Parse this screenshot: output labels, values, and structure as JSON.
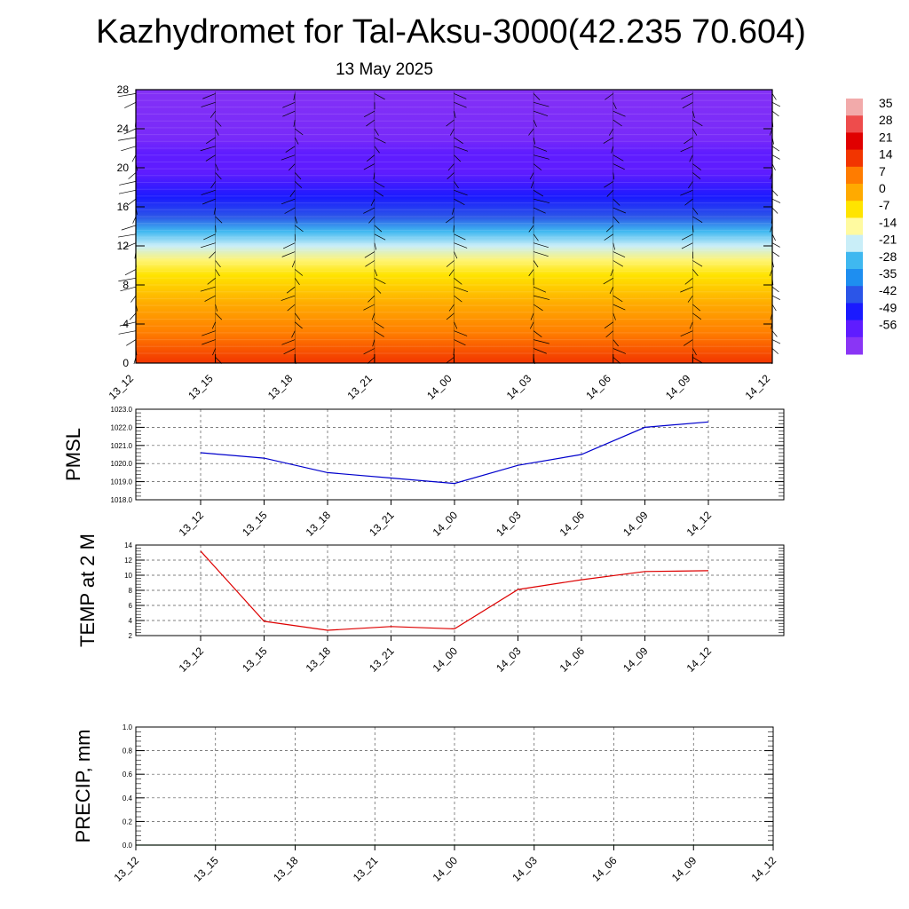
{
  "title": "Kazhydromet for Tal-Aksu-3000(42.235 70.604)",
  "subtitle": "13 May 2025",
  "colors": {
    "pmsl_line": "#0000cc",
    "temp_line": "#dd0000",
    "precip_line": "#2e7d32",
    "grid": "#555555"
  },
  "chart_data": [
    {
      "id": "cross-section",
      "type": "heatmap",
      "categories": [
        "13_12",
        "13_15",
        "13_18",
        "13_21",
        "14_00",
        "14_03",
        "14_06",
        "14_09",
        "14_12"
      ],
      "ylim": [
        0,
        28
      ],
      "yticks": [
        0,
        4,
        8,
        12,
        16,
        20,
        24,
        28
      ],
      "z_profile": [
        {
          "y": 0,
          "value": 14
        },
        {
          "y": 3,
          "value": 7
        },
        {
          "y": 6,
          "value": 0
        },
        {
          "y": 9,
          "value": -7
        },
        {
          "y": 10.5,
          "value": -12
        },
        {
          "y": 12,
          "value": -21
        },
        {
          "y": 13.5,
          "value": -28
        },
        {
          "y": 15,
          "value": -42
        },
        {
          "y": 17,
          "value": -49
        },
        {
          "y": 19.5,
          "value": -56
        },
        {
          "y": 21.5,
          "value": -56
        },
        {
          "y": 23,
          "value": -60
        },
        {
          "y": 28,
          "value": -62
        }
      ],
      "colorbar": {
        "labels": [
          "35",
          "28",
          "21",
          "14",
          "7",
          "0",
          "-7",
          "-14",
          "-21",
          "-28",
          "-35",
          "-42",
          "-49",
          "-56"
        ],
        "colors": [
          "#f2aaaa",
          "#ee4c4c",
          "#e00000",
          "#f23500",
          "#ff7c00",
          "#ffaa00",
          "#ffe400",
          "#fffaa0",
          "#c9eef8",
          "#3fb8f0",
          "#1e8ef0",
          "#2b55e8",
          "#1a1aff",
          "#5f1cff",
          "#8a35f5"
        ]
      }
    },
    {
      "id": "pmsl",
      "type": "line",
      "ylabel": "PMSL",
      "x": [
        "13_12",
        "13_15",
        "13_18",
        "13_21",
        "14_00",
        "14_03",
        "14_06",
        "14_09",
        "14_12"
      ],
      "series": [
        {
          "values": [
            1020.6,
            1020.3,
            1019.5,
            1019.2,
            1018.9,
            1019.9,
            1020.5,
            1022.0,
            1022.3
          ]
        }
      ],
      "ylim": [
        1018.0,
        1023.0
      ],
      "yticks": [
        "1018.0",
        "1019.0",
        "1020.0",
        "1021.0",
        "1022.0",
        "1023.0"
      ]
    },
    {
      "id": "temp",
      "type": "line",
      "ylabel": "TEMP at 2 M",
      "x": [
        "13_12",
        "13_15",
        "13_18",
        "13_21",
        "14_00",
        "14_03",
        "14_06",
        "14_09",
        "14_12"
      ],
      "series": [
        {
          "values": [
            13.2,
            3.9,
            2.7,
            3.2,
            2.9,
            8.1,
            9.4,
            10.5,
            10.6
          ]
        }
      ],
      "ylim": [
        2,
        14
      ],
      "yticks": [
        "2",
        "4",
        "6",
        "8",
        "10",
        "12",
        "14"
      ]
    },
    {
      "id": "precip",
      "type": "line",
      "ylabel": "PRECIP, mm",
      "x": [
        "13_12",
        "13_15",
        "13_18",
        "13_21",
        "14_00",
        "14_03",
        "14_06",
        "14_09",
        "14_12"
      ],
      "series": [
        {
          "values": [
            0,
            0,
            0,
            0,
            0,
            0,
            0,
            0,
            0
          ]
        }
      ],
      "ylim": [
        0,
        1.0
      ],
      "yticks": [
        "0.0",
        "0.2",
        "0.4",
        "0.6",
        "0.8",
        "1.0"
      ]
    }
  ]
}
